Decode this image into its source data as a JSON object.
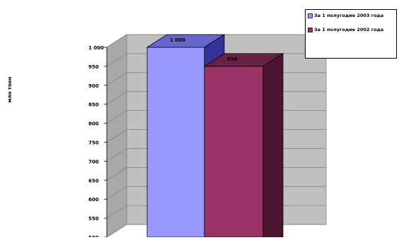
{
  "chart_data": {
    "type": "bar",
    "title": "",
    "xlabel": "",
    "ylabel": "млн тонн",
    "ylim": [
      500,
      1000
    ],
    "yticks": [
      "1 000",
      "950",
      "900",
      "850",
      "800",
      "750",
      "700",
      "650",
      "600",
      "550",
      "500"
    ],
    "grid": true,
    "legend_position": "top-right",
    "categories": [
      ""
    ],
    "series": [
      {
        "name": "За 1 полугодие 2003 года",
        "values": [
          1000
        ],
        "label": "1 000",
        "color": "#9999ff"
      },
      {
        "name": "За 1 полугодие 2002 года",
        "values": [
          950
        ],
        "label": "950",
        "color": "#993366"
      }
    ]
  }
}
